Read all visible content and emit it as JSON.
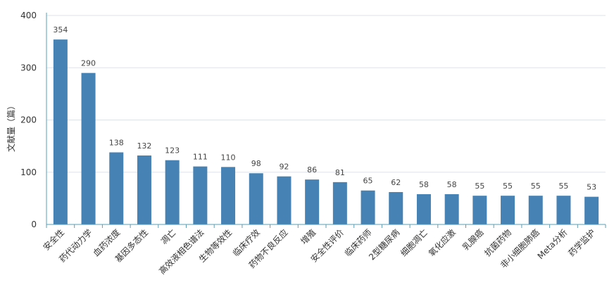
{
  "chart_data": {
    "type": "bar",
    "title": "",
    "xlabel": "",
    "ylabel": "文献量（篇）",
    "ylim": [
      0,
      400
    ],
    "yticks": [
      0,
      100,
      200,
      300,
      400
    ],
    "grid": true,
    "legend": "none",
    "data_labels": true,
    "categories": [
      "安全性",
      "药代动力学",
      "血药浓度",
      "基因多态性",
      "凋亡",
      "高效液相色谱法",
      "生物等效性",
      "临床疗效",
      "药物不良反应",
      "增殖",
      "安全性评价",
      "临床药师",
      "2型糖尿病",
      "细胞凋亡",
      "氧化应激",
      "乳腺癌",
      "抗菌药物",
      "非小细胞肺癌",
      "Meta分析",
      "药学监护"
    ],
    "series": [
      {
        "values": [
          354,
          290,
          138,
          132,
          123,
          111,
          110,
          98,
          92,
          86,
          81,
          65,
          62,
          58,
          58,
          55,
          55,
          55,
          55,
          53
        ]
      }
    ],
    "colors": {
      "bar": "#4682b4",
      "axis": "#5a9fb8",
      "grid": "#dde3e8",
      "tick_label": "#333333",
      "data_label": "#444444"
    }
  }
}
